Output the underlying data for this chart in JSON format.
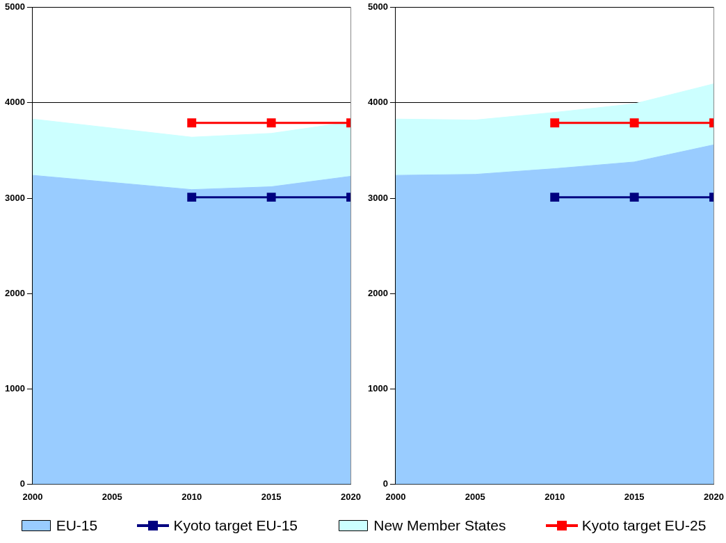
{
  "chart_data": [
    {
      "type": "area",
      "xlim": [
        2000,
        2020
      ],
      "xticks": [
        2000,
        2005,
        2010,
        2015,
        2020
      ],
      "ylim": [
        0,
        5000
      ],
      "yticks": [
        0,
        1000,
        2000,
        3000,
        4000,
        5000
      ],
      "grid": "y",
      "legend": "bottom",
      "stacked": true,
      "series": [
        {
          "name": "EU-15",
          "type": "area",
          "color": "#99ccff",
          "marker": "none",
          "x": [
            2000,
            2010,
            2015,
            2020
          ],
          "values": [
            3240,
            3090,
            3120,
            3230
          ]
        },
        {
          "name": "Kyoto target EU-15",
          "type": "line",
          "color": "#000080",
          "marker": "square",
          "x": [
            2010,
            2015,
            2020
          ],
          "values": [
            3010,
            3010,
            3010
          ]
        },
        {
          "name": "New Member States",
          "type": "area",
          "color": "#ccffff",
          "marker": "none",
          "x": [
            2000,
            2010,
            2015,
            2020
          ],
          "values": [
            590,
            550,
            560,
            570
          ]
        },
        {
          "name": "Kyoto target EU-25",
          "type": "line",
          "color": "#ff0000",
          "marker": "square",
          "x": [
            2010,
            2015,
            2020
          ],
          "values": [
            3790,
            3790,
            3790
          ]
        }
      ]
    },
    {
      "type": "area",
      "xlim": [
        2000,
        2020
      ],
      "xticks": [
        2000,
        2005,
        2010,
        2015,
        2020
      ],
      "ylim": [
        0,
        5000
      ],
      "yticks": [
        0,
        1000,
        2000,
        3000,
        4000,
        5000
      ],
      "grid": "y",
      "legend": "bottom",
      "stacked": true,
      "series": [
        {
          "name": "EU-15",
          "type": "area",
          "color": "#99ccff",
          "marker": "none",
          "x": [
            2000,
            2005,
            2010,
            2015,
            2020
          ],
          "values": [
            3240,
            3250,
            3310,
            3380,
            3560
          ]
        },
        {
          "name": "Kyoto target EU-15",
          "type": "line",
          "color": "#000080",
          "marker": "square",
          "x": [
            2010,
            2015,
            2020
          ],
          "values": [
            3010,
            3010,
            3010
          ]
        },
        {
          "name": "New Member States",
          "type": "area",
          "color": "#ccffff",
          "marker": "none",
          "x": [
            2000,
            2005,
            2010,
            2015,
            2020
          ],
          "values": [
            590,
            570,
            590,
            610,
            640
          ]
        },
        {
          "name": "Kyoto target EU-25",
          "type": "line",
          "color": "#ff0000",
          "marker": "square",
          "x": [
            2010,
            2015,
            2020
          ],
          "values": [
            3790,
            3790,
            3790
          ]
        }
      ]
    }
  ]
}
